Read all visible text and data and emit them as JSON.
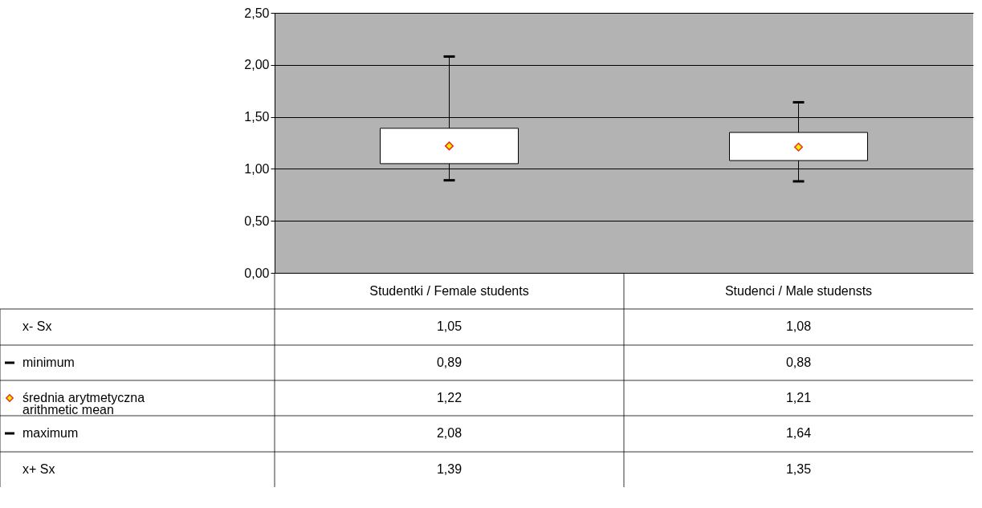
{
  "chart_data": {
    "type": "box",
    "categories": [
      "Studentki / Female students",
      "Studenci / Male studensts"
    ],
    "boxes": [
      {
        "low": 0.89,
        "q1": 1.05,
        "mean": 1.22,
        "q3": 1.39,
        "high": 2.08
      },
      {
        "low": 0.88,
        "q1": 1.08,
        "mean": 1.21,
        "q3": 1.35,
        "high": 1.64
      }
    ],
    "ylim": [
      0,
      2.5
    ],
    "yticks": [
      {
        "value": 0,
        "label": "0,00"
      },
      {
        "value": 0.5,
        "label": "0,50"
      },
      {
        "value": 1,
        "label": "1,00"
      },
      {
        "value": 1.5,
        "label": "1,50"
      },
      {
        "value": 2,
        "label": "2,00"
      },
      {
        "value": 2.5,
        "label": "2,50"
      }
    ],
    "grid": "y",
    "value_labels": [
      [
        "1,05",
        "0,89",
        "1,22",
        "2,08",
        "1,39"
      ],
      [
        "1,08",
        "0,88",
        "1,21",
        "1,64",
        "1,35"
      ]
    ],
    "annotations": [
      "x- Sx",
      "minimum",
      "średnia arytmetyczna\narithmetic mean",
      "maximum",
      "x+ Sx"
    ]
  }
}
